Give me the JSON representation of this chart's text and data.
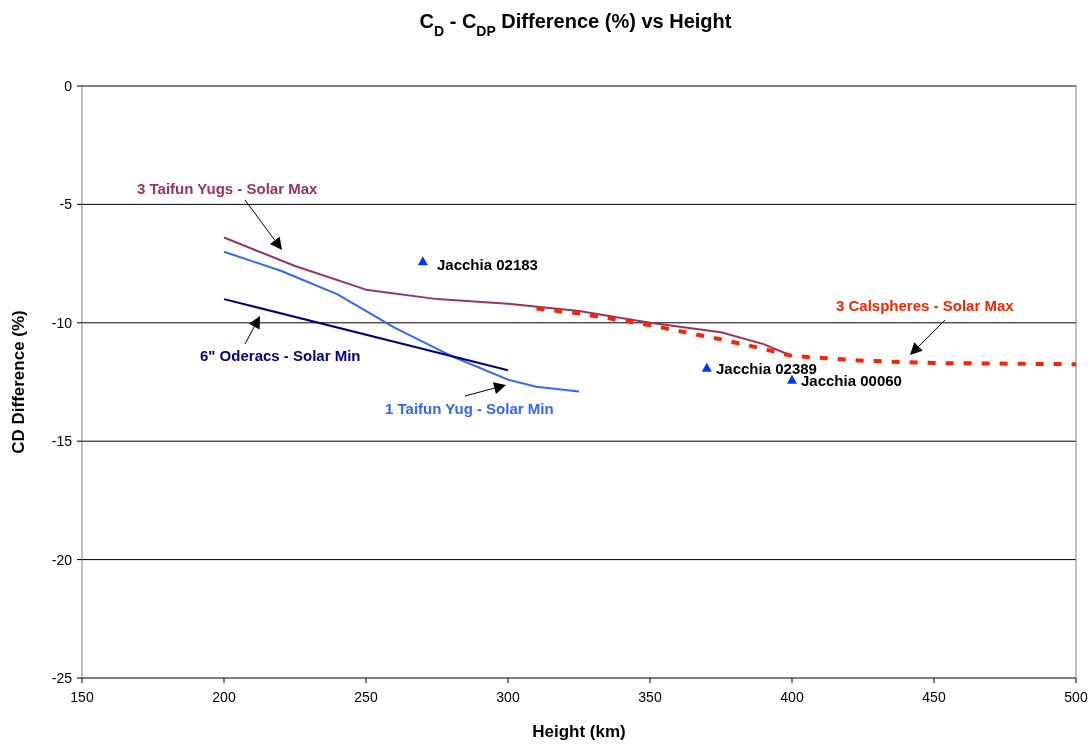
{
  "chart_data": {
    "type": "line",
    "title": "C$_{D}$ - C$_{DP}$ Difference (%) vs Height",
    "xlabel": "Height (km)",
    "ylabel": "CD Difference (%)",
    "xlim": [
      150,
      500
    ],
    "xticks": [
      150,
      200,
      250,
      300,
      350,
      400,
      450,
      500
    ],
    "ylim": [
      -25,
      0
    ],
    "yticks": [
      -25,
      -20,
      -15,
      -10,
      -5,
      0
    ],
    "grid": "y",
    "series": [
      {
        "name": "3 Taifun Yugs - Solar Max",
        "color": "#993366",
        "line_style": "solid",
        "x": [
          200,
          225,
          250,
          275,
          300,
          325,
          350,
          375,
          390,
          400
        ],
        "values": [
          -6.4,
          -7.6,
          -8.6,
          -9.0,
          -9.2,
          -9.5,
          -10.0,
          -10.4,
          -10.9,
          -11.4
        ]
      },
      {
        "name": "1 Taifun Yug - Solar Min",
        "color": "#3366ff",
        "line_style": "solid",
        "x": [
          200,
          220,
          240,
          260,
          280,
          300,
          310,
          325
        ],
        "values": [
          -7.0,
          -7.8,
          -8.8,
          -10.2,
          -11.4,
          -12.4,
          -12.7,
          -12.9
        ]
      },
      {
        "name": "6\" Oderacs - Solar Min",
        "color": "#000080",
        "line_style": "solid",
        "x": [
          200,
          300
        ],
        "values": [
          -9.0,
          -12.0
        ]
      },
      {
        "name": "3 Calspheres - Solar Max",
        "color": "#ff2200",
        "line_style": "dashed",
        "x": [
          310,
          325,
          350,
          375,
          390,
          400,
          425,
          450,
          500
        ],
        "values": [
          -9.4,
          -9.6,
          -10.1,
          -10.7,
          -11.1,
          -11.4,
          -11.6,
          -11.7,
          -11.75
        ]
      },
      {
        "name": "Jacchia 02183",
        "type": "scatter",
        "marker": "triangle",
        "color": "#0033ff",
        "x": [
          270
        ],
        "values": [
          -7.4
        ]
      },
      {
        "name": "Jacchia 02389",
        "type": "scatter",
        "marker": "triangle",
        "color": "#0033ff",
        "x": [
          370
        ],
        "values": [
          -11.9
        ]
      },
      {
        "name": "Jacchia 00060",
        "type": "scatter",
        "marker": "triangle",
        "color": "#0033ff",
        "x": [
          400
        ],
        "values": [
          -12.4
        ]
      }
    ]
  }
}
